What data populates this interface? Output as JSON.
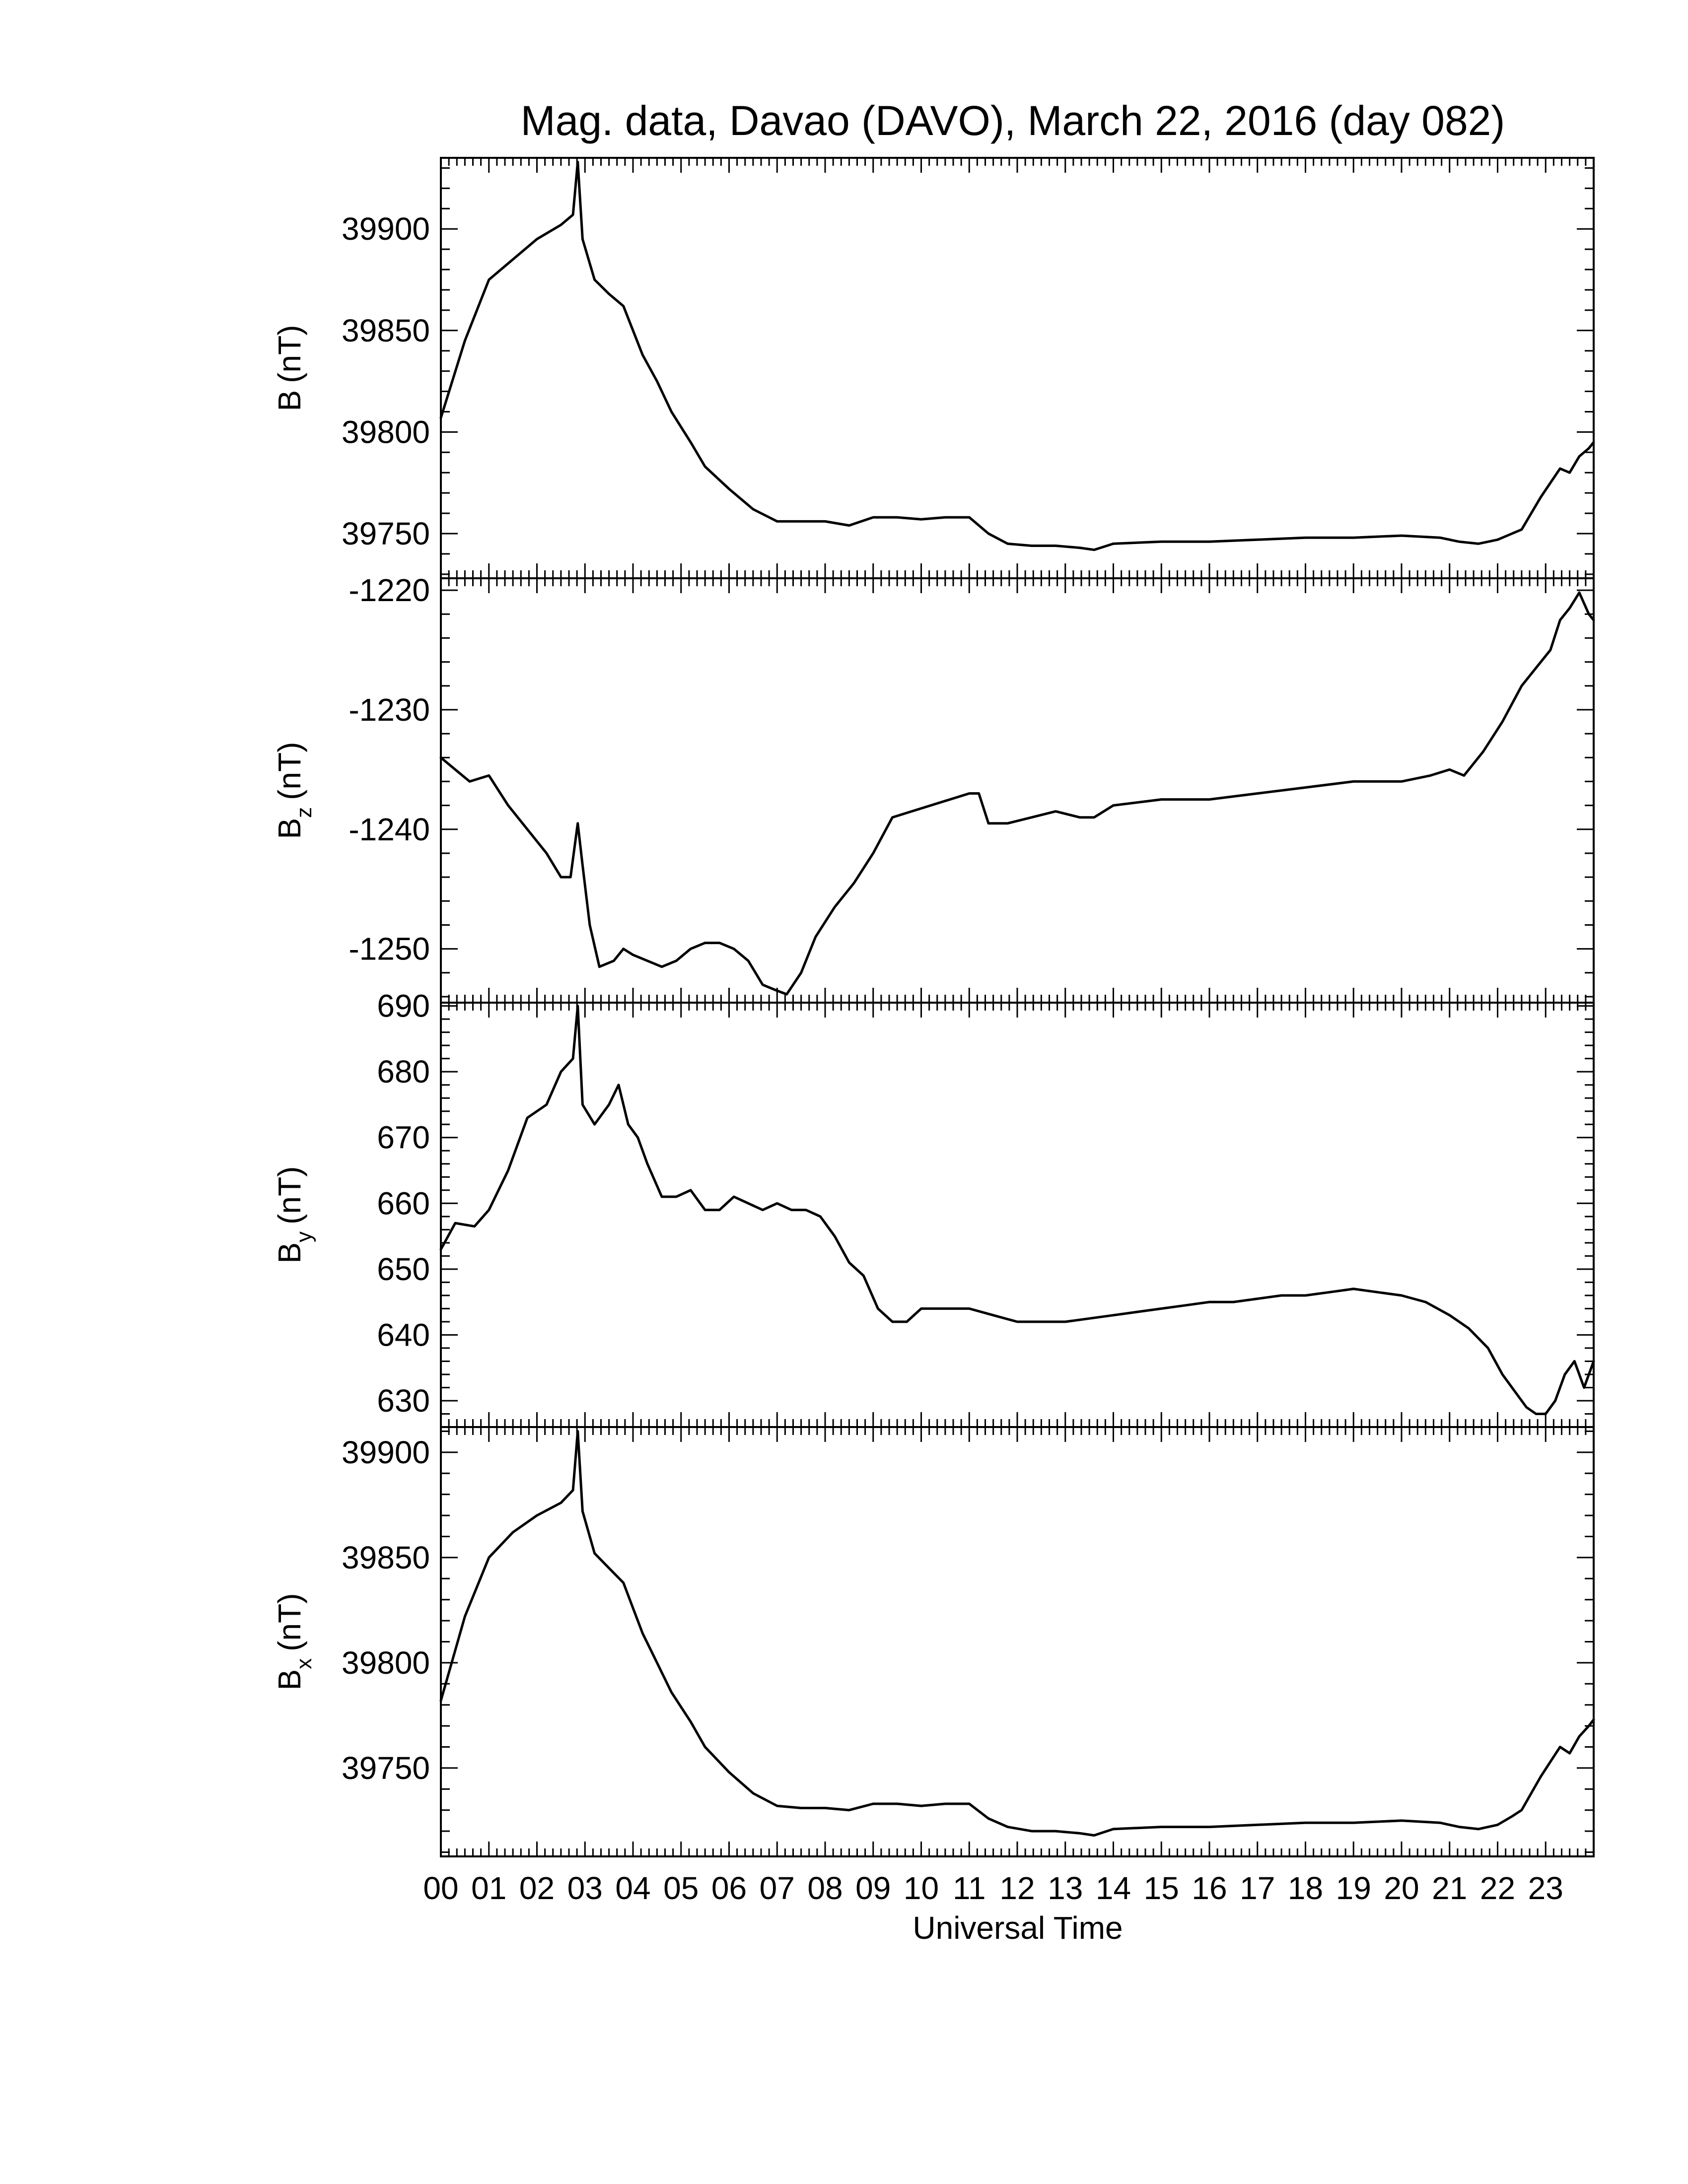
{
  "chart_data": {
    "type": "line",
    "title": "Mag. data, Davao (DAVO), March 22, 2016 (day 082)",
    "xlabel": "Universal Time",
    "x_unit": "hours UT",
    "xlim": [
      0,
      24
    ],
    "x_tick_labels": [
      "00",
      "01",
      "02",
      "03",
      "04",
      "05",
      "06",
      "07",
      "08",
      "09",
      "10",
      "11",
      "12",
      "13",
      "14",
      "15",
      "16",
      "17",
      "18",
      "19",
      "20",
      "21",
      "22",
      "23"
    ],
    "x_tick_values": [
      0,
      1,
      2,
      3,
      4,
      5,
      6,
      7,
      8,
      9,
      10,
      11,
      12,
      13,
      14,
      15,
      16,
      17,
      18,
      19,
      20,
      21,
      22,
      23
    ],
    "panels": [
      {
        "id": "B",
        "ylabel_main": "B",
        "ylabel_sub": "",
        "ylabel_unit": "(nT)",
        "ylim": [
          39728,
          39935
        ],
        "y_ticks": [
          39750,
          39800,
          39850,
          39900
        ],
        "y_tick_labels": [
          "39750",
          "39800",
          "39850",
          "39900"
        ],
        "series": [
          {
            "x": [
              0,
              0.5,
              1,
              1.5,
              2,
              2.5,
              2.75,
              2.85,
              2.95,
              3.2,
              3.5,
              3.8,
              4.0,
              4.2,
              4.5,
              4.8,
              5.2,
              5.5,
              6.0,
              6.5,
              7.0,
              7.5,
              8.0,
              8.5,
              9.0,
              9.5,
              10.0,
              10.5,
              11.0,
              11.4,
              11.8,
              12.3,
              12.8,
              13.3,
              13.6,
              14.0,
              15.0,
              16.0,
              17.0,
              18.0,
              19.0,
              20.0,
              20.8,
              21.2,
              21.6,
              22.0,
              22.3,
              22.5,
              22.7,
              22.9,
              23.1,
              23.3,
              23.5,
              23.7,
              23.9,
              24.0
            ],
            "y": [
              39807,
              39845,
              39875,
              39885,
              39895,
              39902,
              39907,
              39933,
              39895,
              39875,
              39868,
              39862,
              39850,
              39838,
              39825,
              39810,
              39795,
              39783,
              39772,
              39762,
              39756,
              39756,
              39756,
              39754,
              39758,
              39758,
              39757,
              39758,
              39758,
              39750,
              39745,
              39744,
              39744,
              39743,
              39742,
              39745,
              39746,
              39746,
              39747,
              39748,
              39748,
              39749,
              39748,
              39746,
              39745,
              39747,
              39750,
              39752,
              39760,
              39768,
              39775,
              39782,
              39780,
              39788,
              39792,
              39795
            ]
          }
        ]
      },
      {
        "id": "Bz",
        "ylabel_main": "B",
        "ylabel_sub": "z",
        "ylabel_unit": "(nT)",
        "ylim": [
          -1254.5,
          -1219
        ],
        "y_ticks": [
          -1250,
          -1240,
          -1230,
          -1220
        ],
        "y_tick_labels": [
          "-1250",
          "-1240",
          "-1230",
          "-1220"
        ],
        "series": [
          {
            "x": [
              0,
              0.3,
              0.6,
              1.0,
              1.4,
              1.8,
              2.2,
              2.5,
              2.7,
              2.85,
              2.95,
              3.1,
              3.3,
              3.6,
              3.8,
              4.0,
              4.3,
              4.6,
              4.9,
              5.2,
              5.5,
              5.8,
              6.1,
              6.4,
              6.7,
              7.0,
              7.2,
              7.5,
              7.8,
              8.2,
              8.6,
              9.0,
              9.4,
              9.8,
              10.2,
              10.6,
              11.0,
              11.2,
              11.4,
              11.8,
              12.3,
              12.8,
              13.3,
              13.6,
              14.0,
              15.0,
              16.0,
              17.0,
              18.0,
              19.0,
              20.0,
              20.6,
              21.0,
              21.3,
              21.7,
              22.1,
              22.5,
              22.8,
              23.1,
              23.3,
              23.5,
              23.7,
              23.9,
              24.0
            ],
            "y": [
              -1234,
              -1235,
              -1236,
              -1235.5,
              -1238,
              -1240,
              -1242,
              -1244,
              -1244,
              -1239.5,
              -1243,
              -1248,
              -1251.5,
              -1251,
              -1250,
              -1250.5,
              -1251,
              -1251.5,
              -1251,
              -1250,
              -1249.5,
              -1249.5,
              -1250,
              -1251,
              -1253,
              -1253.5,
              -1253.8,
              -1252,
              -1249,
              -1246.5,
              -1244.5,
              -1242,
              -1239,
              -1238.5,
              -1238,
              -1237.5,
              -1237,
              -1237,
              -1239.5,
              -1239.5,
              -1239,
              -1238.5,
              -1239,
              -1239,
              -1238,
              -1237.5,
              -1237.5,
              -1237,
              -1236.5,
              -1236,
              -1236,
              -1235.5,
              -1235,
              -1235.5,
              -1233.5,
              -1231,
              -1228,
              -1226.5,
              -1225,
              -1222.5,
              -1221.5,
              -1220.2,
              -1222,
              -1222.5
            ]
          }
        ]
      },
      {
        "id": "By",
        "ylabel_main": "B",
        "ylabel_sub": "y",
        "ylabel_unit": "(nT)",
        "ylim": [
          626,
          690.5
        ],
        "y_ticks": [
          630,
          640,
          650,
          660,
          670,
          680,
          690
        ],
        "y_tick_labels": [
          "630",
          "640",
          "650",
          "660",
          "670",
          "680",
          "690"
        ],
        "series": [
          {
            "x": [
              0,
              0.3,
              0.7,
              1.0,
              1.4,
              1.8,
              2.2,
              2.5,
              2.75,
              2.85,
              2.95,
              3.2,
              3.5,
              3.7,
              3.9,
              4.1,
              4.3,
              4.6,
              4.9,
              5.2,
              5.5,
              5.8,
              6.1,
              6.4,
              6.7,
              7.0,
              7.3,
              7.6,
              7.9,
              8.2,
              8.5,
              8.8,
              9.1,
              9.4,
              9.7,
              10.0,
              10.3,
              10.6,
              11.0,
              11.5,
              12.0,
              12.5,
              13.0,
              13.5,
              14.0,
              14.5,
              15.0,
              15.5,
              16.0,
              16.5,
              17.0,
              17.5,
              18.0,
              18.5,
              19.0,
              19.5,
              20.0,
              20.5,
              21.0,
              21.4,
              21.8,
              22.1,
              22.4,
              22.6,
              22.8,
              23.0,
              23.2,
              23.4,
              23.6,
              23.8,
              24.0
            ],
            "y": [
              653,
              657,
              656.5,
              659,
              665,
              673,
              675,
              680,
              682,
              690,
              675,
              672,
              675,
              678,
              672,
              670,
              666,
              661,
              661,
              662,
              659,
              659,
              661,
              660,
              659,
              660,
              659,
              659,
              658,
              655,
              651,
              649,
              644,
              642,
              642,
              644,
              644,
              644,
              644,
              643,
              642,
              642,
              642,
              642.5,
              643,
              643.5,
              644,
              644.5,
              645,
              645,
              645.5,
              646,
              646,
              646.5,
              647,
              646.5,
              646,
              645,
              643,
              641,
              638,
              634,
              631,
              629,
              628,
              628,
              630,
              634,
              636,
              632,
              636
            ]
          }
        ]
      },
      {
        "id": "Bx",
        "ylabel_main": "B",
        "ylabel_sub": "x",
        "ylabel_unit": "(nT)",
        "ylim": [
          39708,
          39912
        ],
        "y_ticks": [
          39750,
          39800,
          39850,
          39900
        ],
        "y_tick_labels": [
          "39750",
          "39800",
          "39850",
          "39900"
        ],
        "series": [
          {
            "x": [
              0,
              0.5,
              1,
              1.5,
              2,
              2.5,
              2.75,
              2.85,
              2.95,
              3.2,
              3.5,
              3.8,
              4.0,
              4.2,
              4.5,
              4.8,
              5.2,
              5.5,
              6.0,
              6.5,
              7.0,
              7.5,
              8.0,
              8.5,
              9.0,
              9.5,
              10.0,
              10.5,
              11.0,
              11.4,
              11.8,
              12.3,
              12.8,
              13.3,
              13.6,
              14.0,
              15.0,
              16.0,
              17.0,
              18.0,
              19.0,
              20.0,
              20.8,
              21.2,
              21.6,
              22.0,
              22.3,
              22.5,
              22.7,
              22.9,
              23.1,
              23.3,
              23.5,
              23.7,
              23.9,
              24.0
            ],
            "y": [
              39782,
              39822,
              39850,
              39862,
              39870,
              39876,
              39882,
              39910,
              39872,
              39852,
              39845,
              39838,
              39826,
              39814,
              39800,
              39786,
              39772,
              39760,
              39748,
              39738,
              39732,
              39731,
              39731,
              39730,
              39733,
              39733,
              39732,
              39733,
              39733,
              39726,
              39722,
              39720,
              39720,
              39719,
              39718,
              39721,
              39722,
              39722,
              39723,
              39724,
              39724,
              39725,
              39724,
              39722,
              39721,
              39723,
              39727,
              39730,
              39738,
              39746,
              39753,
              39760,
              39757,
              39765,
              39770,
              39773
            ]
          }
        ]
      }
    ]
  }
}
